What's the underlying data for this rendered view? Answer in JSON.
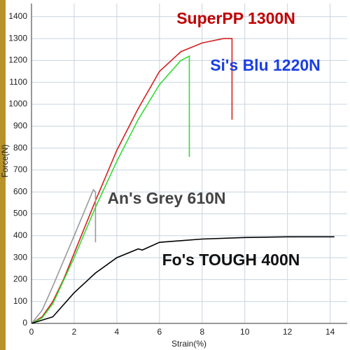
{
  "chart_data": {
    "type": "line",
    "x_label": "Strain(%)",
    "y_label": "Force(N)",
    "xlim": [
      0,
      14.8
    ],
    "ylim": [
      0,
      1460
    ],
    "xticks": [
      0,
      2,
      4,
      6,
      8,
      10,
      12,
      14
    ],
    "yticks": [
      0,
      100,
      200,
      300,
      400,
      500,
      600,
      700,
      800,
      900,
      1000,
      1100,
      1200,
      1300,
      1400
    ],
    "grid": true,
    "series": [
      {
        "name": "SuperPP 1300N",
        "color": "#d42020",
        "label_color": "#c00000",
        "x": [
          0,
          0.5,
          1,
          1.5,
          2,
          3,
          4,
          5,
          6,
          7,
          8,
          9,
          9.4,
          9.4
        ],
        "values": [
          0,
          30,
          100,
          200,
          320,
          560,
          790,
          980,
          1150,
          1240,
          1280,
          1300,
          1300,
          930
        ]
      },
      {
        "name": "Si's Blu 1220N",
        "color": "#33dd33",
        "label_color": "#1a3fe0",
        "x": [
          0,
          0.5,
          1,
          2,
          3,
          4,
          5,
          6,
          7,
          7.4,
          7.4
        ],
        "values": [
          0,
          25,
          90,
          300,
          530,
          740,
          930,
          1090,
          1200,
          1220,
          760
        ]
      },
      {
        "name": "An's Grey 610N",
        "color": "#999999",
        "label_color": "#444444",
        "x": [
          0,
          0.5,
          1,
          2,
          2.9,
          3,
          3
        ],
        "values": [
          0,
          60,
          170,
          400,
          610,
          600,
          370
        ]
      },
      {
        "name": "Fo's TOUGH 400N",
        "color": "#000000",
        "label_color": "#111111",
        "x": [
          0,
          1,
          2,
          3,
          4,
          5,
          5.2,
          6,
          8,
          10,
          12,
          14.2
        ],
        "values": [
          0,
          30,
          140,
          230,
          300,
          340,
          335,
          370,
          385,
          392,
          395,
          395
        ]
      }
    ]
  }
}
